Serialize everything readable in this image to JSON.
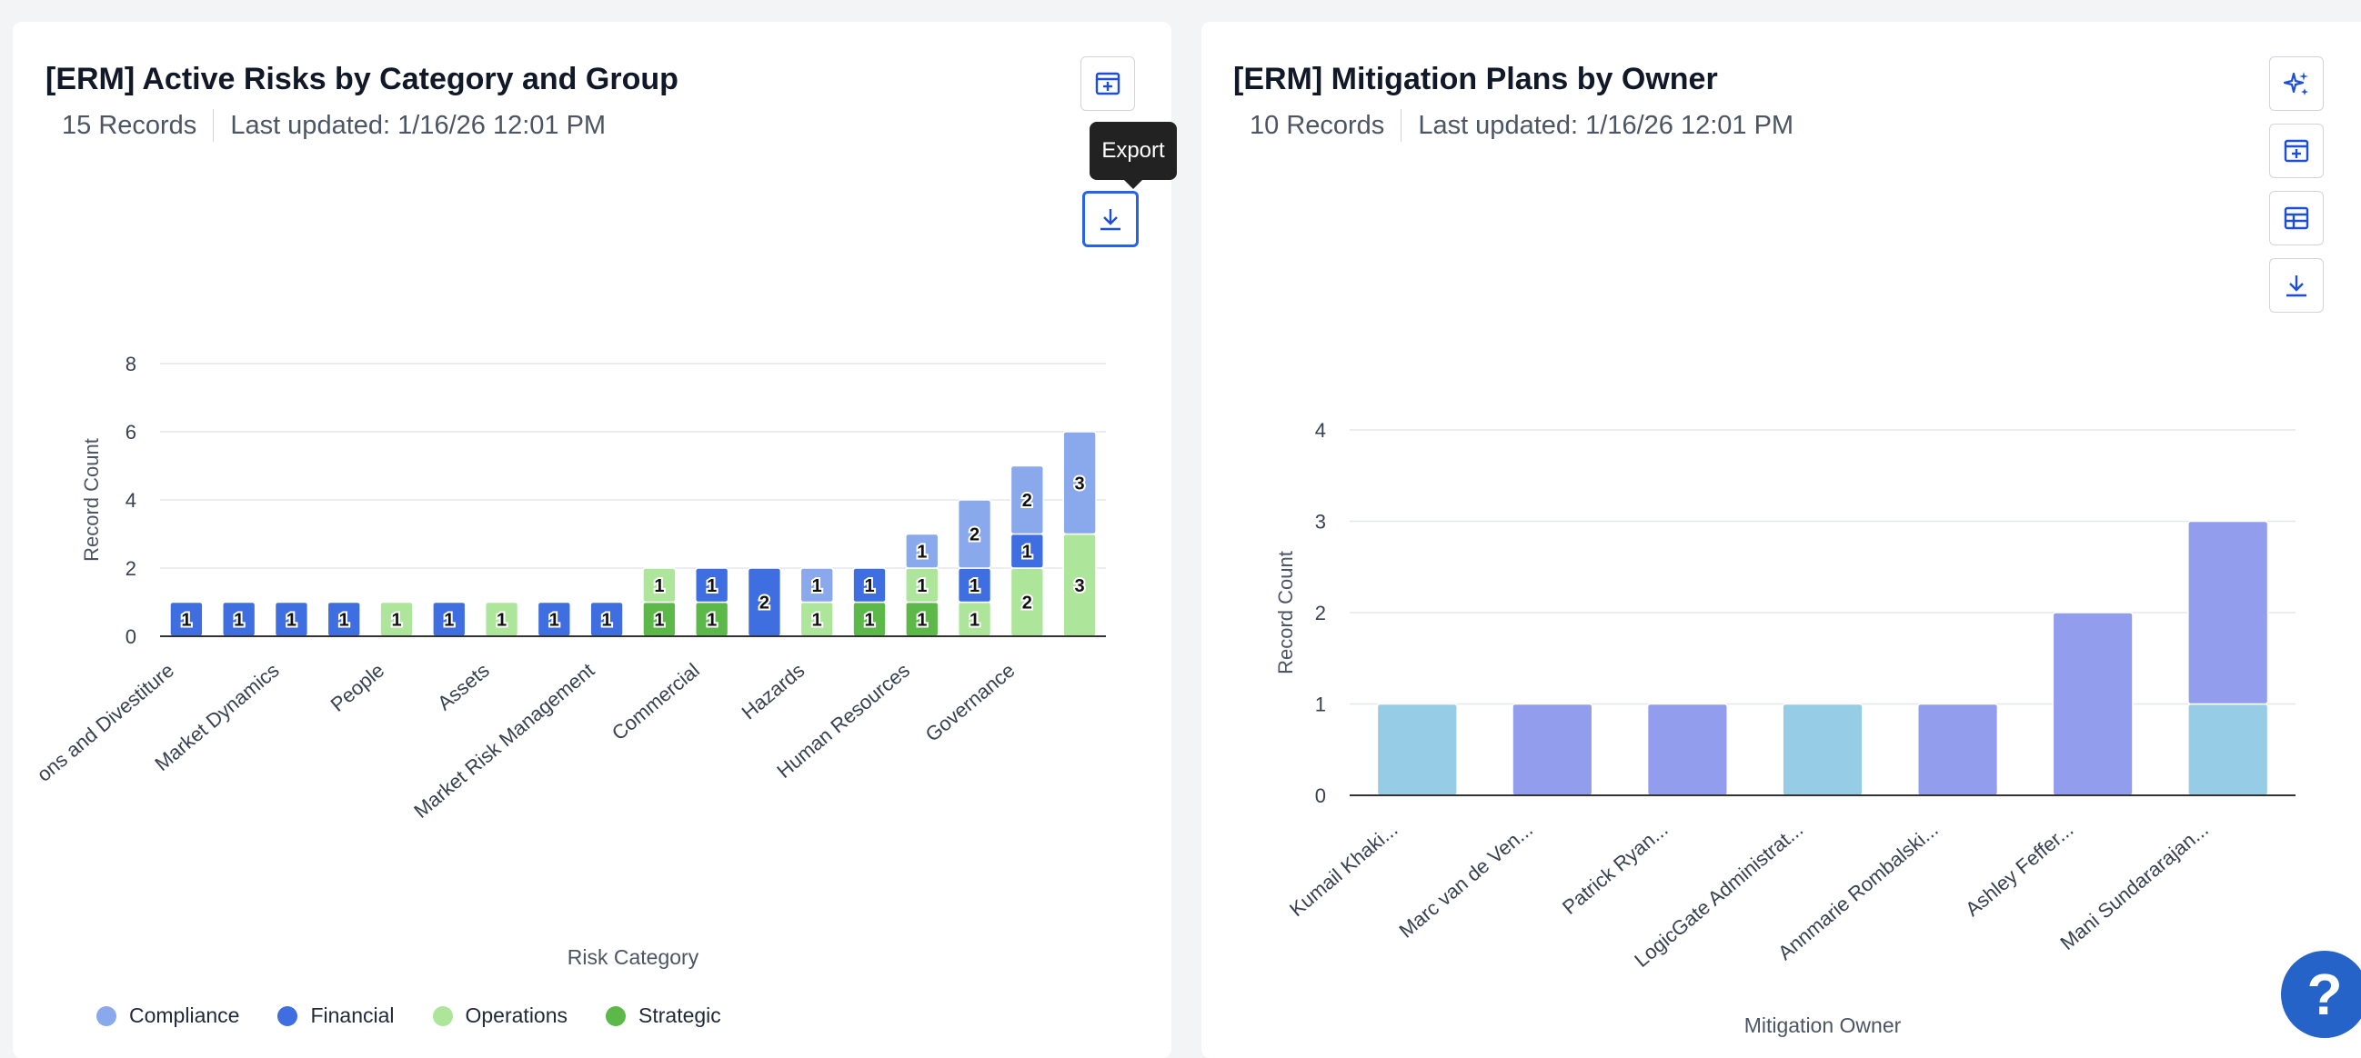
{
  "card1": {
    "title": "[ERM] Active Risks by Category and Group",
    "records": "15 Records",
    "updated": "Last updated: 1/16/26 12:01 PM",
    "tooltip": "Export",
    "buttons": [
      {
        "name": "add-to-dashboard-icon"
      },
      {
        "name": "download-icon"
      }
    ]
  },
  "card2": {
    "title": "[ERM] Mitigation Plans by Owner",
    "records": "10 Records",
    "updated": "Last updated: 1/16/26 12:01 PM",
    "buttons": [
      {
        "name": "sparkle-icon"
      },
      {
        "name": "add-to-dashboard-icon"
      },
      {
        "name": "table-icon"
      },
      {
        "name": "download-icon"
      }
    ]
  },
  "colors": {
    "compliance": "#8aa8ec",
    "financial": "#3f6ee0",
    "operations": "#ade69a",
    "strategic": "#5cb848",
    "lavender": "#939ded",
    "skyblue": "#97cce6"
  },
  "chart_data": [
    {
      "type": "bar",
      "stacked": true,
      "xlabel": "Risk Category",
      "ylabel": "Record Count",
      "ylim": [
        0,
        8
      ],
      "yticks": [
        0,
        2,
        4,
        6,
        8
      ],
      "tick_labels": [
        "ons and Divestiture",
        "Market Dynamics",
        "People",
        "Assets",
        "Market Risk Management",
        "Commercial",
        "Hazards",
        "Human Resources",
        "Governance"
      ],
      "categories": [
        "Acquisitions and Divestiture",
        "",
        "Market Dynamics",
        "",
        "People",
        "",
        "Assets",
        "",
        "Market Risk Management",
        "",
        "Commercial",
        "",
        "Hazards",
        "",
        "Human Resources",
        "",
        "Governance",
        ""
      ],
      "series": [
        {
          "name": "Strategic",
          "color_key": "strategic",
          "values": [
            0,
            0,
            0,
            0,
            0,
            0,
            0,
            0,
            0,
            1,
            1,
            0,
            0,
            1,
            1,
            0,
            0,
            0
          ]
        },
        {
          "name": "Operations",
          "color_key": "operations",
          "values": [
            0,
            0,
            0,
            0,
            1,
            0,
            1,
            0,
            0,
            1,
            0,
            0,
            1,
            0,
            1,
            1,
            2,
            3
          ]
        },
        {
          "name": "Financial",
          "color_key": "financial",
          "values": [
            1,
            1,
            1,
            1,
            0,
            1,
            0,
            1,
            1,
            0,
            1,
            2,
            0,
            1,
            0,
            1,
            1,
            0
          ]
        },
        {
          "name": "Compliance",
          "color_key": "compliance",
          "values": [
            0,
            0,
            0,
            0,
            0,
            0,
            0,
            0,
            0,
            0,
            0,
            0,
            1,
            0,
            1,
            2,
            2,
            3
          ]
        }
      ],
      "legend": [
        "Compliance",
        "Financial",
        "Operations",
        "Strategic"
      ],
      "legend_position": "bottom-left"
    },
    {
      "type": "bar",
      "stacked": true,
      "xlabel": "Mitigation Owner",
      "ylabel": "Record Count",
      "ylim": [
        0,
        4
      ],
      "yticks": [
        0,
        1,
        2,
        3,
        4
      ],
      "categories": [
        "Kumail Khaki...",
        "Marc van de Ven...",
        "Patrick Ryan...",
        "LogicGate Administrat...",
        "Annmarie Rombalski...",
        "Ashley Feffer...",
        "Mani Sundararajan..."
      ],
      "series": [
        {
          "color_key": "skyblue",
          "values": [
            1,
            0,
            0,
            1,
            0,
            0,
            1
          ]
        },
        {
          "color_key": "lavender",
          "values": [
            0,
            1,
            1,
            0,
            1,
            2,
            2
          ]
        }
      ]
    }
  ]
}
